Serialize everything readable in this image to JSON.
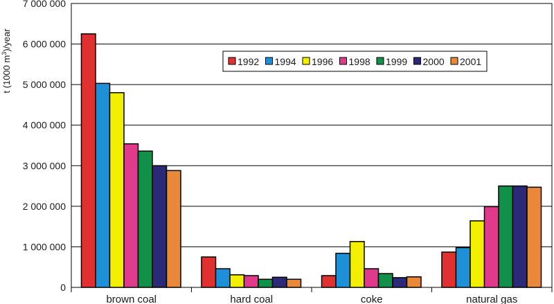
{
  "chart_data": {
    "type": "bar",
    "title": "",
    "xlabel": "",
    "ylabel": "t (1000 m³)/year",
    "ylabel_parts": {
      "before": "t (1000 m",
      "sup": "3",
      "after": ")/year"
    },
    "ylim": [
      0,
      7000000
    ],
    "yticks": [
      0,
      1000000,
      2000000,
      3000000,
      4000000,
      5000000,
      6000000,
      7000000
    ],
    "ytick_labels": [
      "0",
      "1 000 000",
      "2 000 000",
      "3 000 000",
      "4 000 000",
      "5 000 000",
      "6 000 000",
      "7 000 000"
    ],
    "grid": "horizontal",
    "legend_position": "top-right",
    "categories": [
      "brown coal",
      "hard coal",
      "coke",
      "natural gas"
    ],
    "series": [
      {
        "name": "1992",
        "color": "#e03030",
        "values": [
          6250000,
          750000,
          290000,
          870000
        ]
      },
      {
        "name": "1994",
        "color": "#1e90d8",
        "values": [
          5030000,
          460000,
          840000,
          980000
        ]
      },
      {
        "name": "1996",
        "color": "#f2f000",
        "values": [
          4800000,
          310000,
          1130000,
          1640000
        ]
      },
      {
        "name": "1998",
        "color": "#e03a8c",
        "values": [
          3540000,
          290000,
          460000,
          1990000
        ]
      },
      {
        "name": "1999",
        "color": "#109048",
        "values": [
          3360000,
          200000,
          340000,
          2500000
        ]
      },
      {
        "name": "2000",
        "color": "#2a2a78",
        "values": [
          3000000,
          250000,
          240000,
          2500000
        ]
      },
      {
        "name": "2001",
        "color": "#e88838",
        "values": [
          2880000,
          200000,
          260000,
          2470000
        ]
      }
    ]
  }
}
